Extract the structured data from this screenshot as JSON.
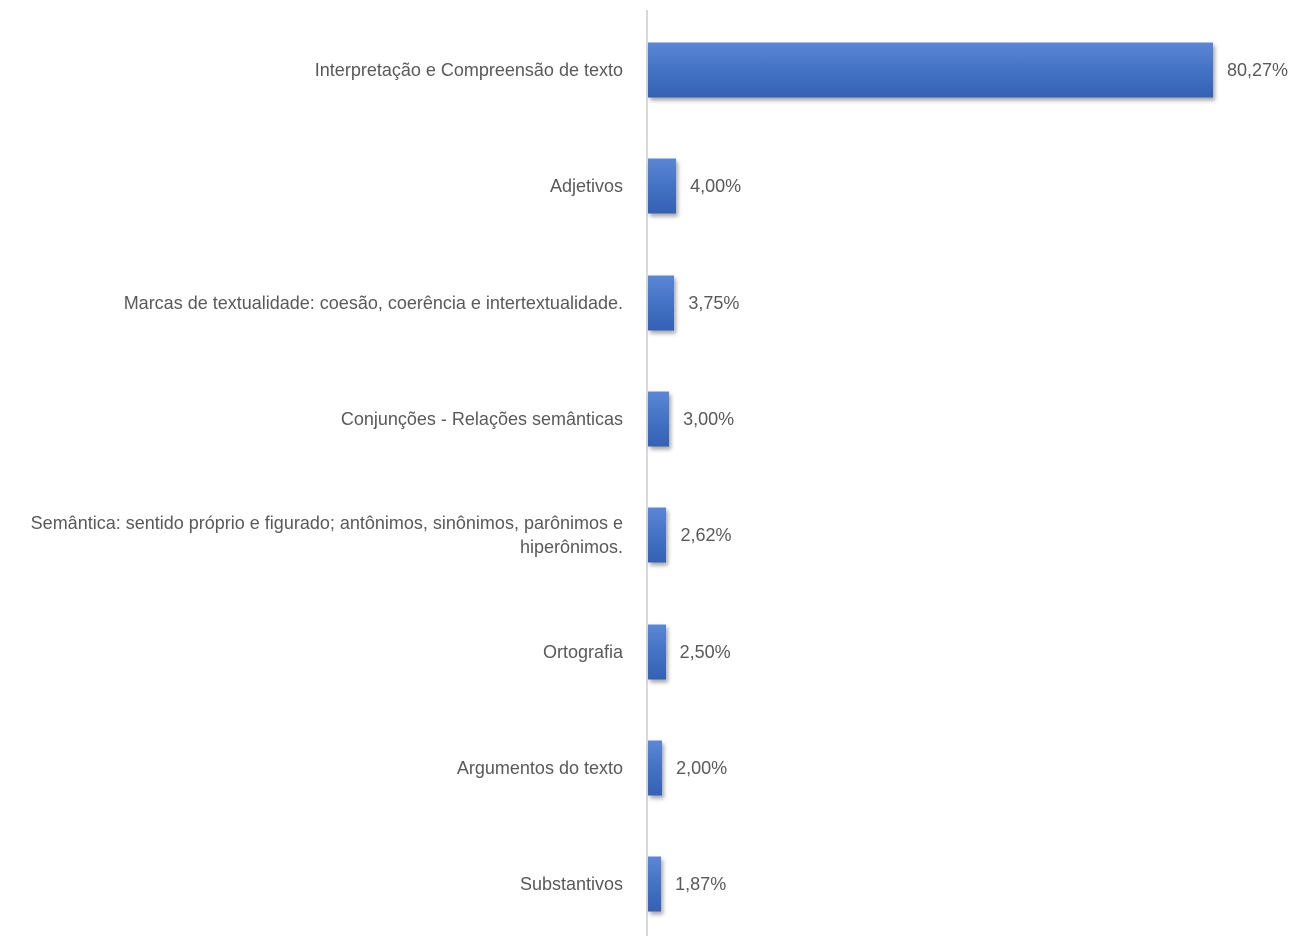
{
  "chart_data": {
    "type": "barh",
    "categories": [
      "Interpretação e Compreensão de texto",
      "Adjetivos",
      "Marcas de textualidade: coesão, coerência e intertextualidade.",
      "Conjunções - Relações semânticas",
      "Semântica: sentido próprio e figurado; antônimos, sinônimos, parônimos e hiperônimos.",
      "Ortografia",
      "Argumentos do texto",
      "Substantivos"
    ],
    "values": [
      80.27,
      4.0,
      3.75,
      3.0,
      2.62,
      2.5,
      2.0,
      1.87
    ],
    "value_labels": [
      "80,27%",
      "4,00%",
      "3,75%",
      "3,00%",
      "2,62%",
      "2,50%",
      "2,00%",
      "1,87%"
    ],
    "color": "#4472c4"
  }
}
